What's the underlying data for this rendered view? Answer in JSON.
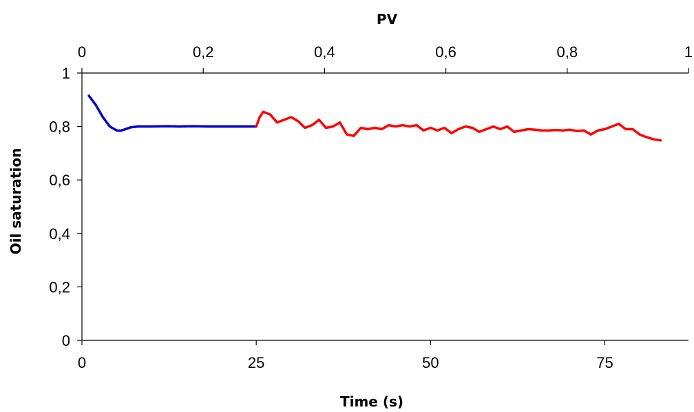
{
  "chart_data": {
    "type": "line",
    "title": "",
    "xlabel": "Time (s)",
    "ylabel": "Oil saturation",
    "x2label": "PV",
    "xlim": [
      0,
      87
    ],
    "ylim": [
      0,
      1
    ],
    "x2lim": [
      0,
      1
    ],
    "xticks": [
      0,
      25,
      50,
      75
    ],
    "xtick_labels": [
      "0",
      "25",
      "50",
      "75"
    ],
    "yticks": [
      0,
      0.2,
      0.4,
      0.6,
      0.8,
      1
    ],
    "ytick_labels": [
      "0",
      "0,2",
      "0,4",
      "0,6",
      "0,8",
      "1"
    ],
    "x2ticks": [
      0,
      0.2,
      0.4,
      0.6,
      0.8,
      1
    ],
    "x2tick_labels": [
      "0",
      "0,2",
      "0,4",
      "0,6",
      "0,8",
      "1"
    ],
    "grid": false,
    "legend": "none",
    "series": [
      {
        "color": "#0000cc",
        "x": [
          1.0,
          2.0,
          3.0,
          4.0,
          5.0,
          5.5,
          6.0,
          7.0,
          8.0,
          10.0,
          12.0,
          14.0,
          16.0,
          18.0,
          20.0,
          22.0,
          24.0,
          25.0
        ],
        "y": [
          0.915,
          0.88,
          0.835,
          0.8,
          0.785,
          0.784,
          0.788,
          0.797,
          0.8,
          0.8,
          0.801,
          0.8,
          0.801,
          0.8,
          0.8,
          0.8,
          0.8,
          0.8
        ]
      },
      {
        "color": "#ff0000",
        "x": [
          25.0,
          25.5,
          26.0,
          27.0,
          28.0,
          29.0,
          30.0,
          31.0,
          32.0,
          33.0,
          34.0,
          35.0,
          36.0,
          37.0,
          38.0,
          39.0,
          40.0,
          41.0,
          42.0,
          43.0,
          44.0,
          45.0,
          46.0,
          47.0,
          48.0,
          49.0,
          50.0,
          51.0,
          52.0,
          53.0,
          54.0,
          55.0,
          56.0,
          57.0,
          58.0,
          59.0,
          60.0,
          61.0,
          62.0,
          63.0,
          64.0,
          65.0,
          66.0,
          67.0,
          68.0,
          69.0,
          70.0,
          71.0,
          72.0,
          73.0,
          74.0,
          75.0,
          76.0,
          77.0,
          78.0,
          79.0,
          80.0,
          81.0,
          82.0,
          83.0
        ],
        "y": [
          0.8,
          0.835,
          0.855,
          0.845,
          0.815,
          0.825,
          0.835,
          0.82,
          0.795,
          0.805,
          0.825,
          0.795,
          0.8,
          0.815,
          0.77,
          0.765,
          0.795,
          0.79,
          0.795,
          0.79,
          0.805,
          0.8,
          0.805,
          0.8,
          0.805,
          0.785,
          0.795,
          0.785,
          0.795,
          0.775,
          0.79,
          0.8,
          0.795,
          0.78,
          0.79,
          0.8,
          0.79,
          0.8,
          0.78,
          0.785,
          0.79,
          0.788,
          0.785,
          0.785,
          0.787,
          0.785,
          0.788,
          0.783,
          0.785,
          0.77,
          0.785,
          0.79,
          0.8,
          0.81,
          0.79,
          0.79,
          0.77,
          0.76,
          0.752,
          0.748
        ]
      }
    ]
  }
}
